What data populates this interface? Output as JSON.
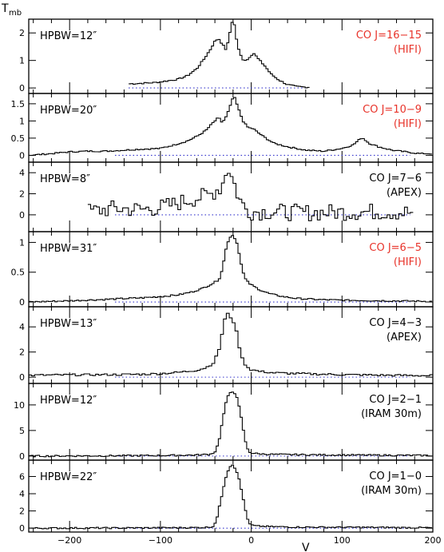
{
  "chart_data": {
    "type": "line",
    "title": "",
    "ylabel": "T_mb",
    "xlabel": "V",
    "xlim": [
      -245,
      200
    ],
    "x_ticks": [
      -200,
      -100,
      0,
      100,
      200
    ],
    "colors": {
      "hifi": "#e8332a",
      "other": "#000000",
      "baseline": "#3333cc"
    },
    "panels": [
      {
        "id": "co-16-15",
        "hpbw": "HPBW=12″",
        "line": "CO J=16−15",
        "instrument": "(HIFI)",
        "color": "#e8332a",
        "ylim": [
          -0.2,
          2.5
        ],
        "yticks": [
          0,
          1,
          2
        ],
        "xrange": [
          -135,
          62
        ],
        "points": [
          [
            -135,
            0.15
          ],
          [
            -120,
            0.17
          ],
          [
            -105,
            0.2
          ],
          [
            -90,
            0.27
          ],
          [
            -80,
            0.32
          ],
          [
            -70,
            0.45
          ],
          [
            -60,
            0.7
          ],
          [
            -52,
            1.05
          ],
          [
            -45,
            1.4
          ],
          [
            -40,
            1.7
          ],
          [
            -36,
            1.8
          ],
          [
            -32,
            1.6
          ],
          [
            -28,
            1.4
          ],
          [
            -25,
            1.7
          ],
          [
            -22,
            2.3
          ],
          [
            -20,
            2.5
          ],
          [
            -18,
            2.2
          ],
          [
            -15,
            1.5
          ],
          [
            -10,
            1.05
          ],
          [
            -5,
            1.0
          ],
          [
            0,
            1.2
          ],
          [
            3,
            1.25
          ],
          [
            8,
            1.05
          ],
          [
            15,
            0.8
          ],
          [
            22,
            0.5
          ],
          [
            30,
            0.3
          ],
          [
            40,
            0.12
          ],
          [
            50,
            0.05
          ],
          [
            62,
            0.03
          ]
        ]
      },
      {
        "id": "co-10-9",
        "hpbw": "HPBW=20″",
        "line": "CO J=10−9",
        "instrument": "(HIFI)",
        "color": "#e8332a",
        "ylim": [
          -0.2,
          1.8
        ],
        "yticks": [
          0,
          0.5,
          1,
          1.5
        ],
        "xrange": [
          -245,
          198
        ],
        "points": [
          [
            -245,
            0.0
          ],
          [
            -220,
            0.05
          ],
          [
            -200,
            0.1
          ],
          [
            -180,
            0.12
          ],
          [
            -160,
            0.12
          ],
          [
            -140,
            0.15
          ],
          [
            -120,
            0.18
          ],
          [
            -100,
            0.2
          ],
          [
            -85,
            0.3
          ],
          [
            -70,
            0.42
          ],
          [
            -60,
            0.55
          ],
          [
            -50,
            0.72
          ],
          [
            -42,
            0.95
          ],
          [
            -36,
            1.1
          ],
          [
            -32,
            0.95
          ],
          [
            -28,
            1.1
          ],
          [
            -24,
            1.35
          ],
          [
            -21,
            1.62
          ],
          [
            -19,
            1.72
          ],
          [
            -16,
            1.5
          ],
          [
            -12,
            1.2
          ],
          [
            -8,
            0.95
          ],
          [
            -3,
            0.8
          ],
          [
            2,
            0.78
          ],
          [
            8,
            0.65
          ],
          [
            15,
            0.52
          ],
          [
            25,
            0.35
          ],
          [
            40,
            0.25
          ],
          [
            60,
            0.15
          ],
          [
            80,
            0.12
          ],
          [
            100,
            0.2
          ],
          [
            112,
            0.3
          ],
          [
            122,
            0.52
          ],
          [
            130,
            0.35
          ],
          [
            140,
            0.25
          ],
          [
            155,
            0.15
          ],
          [
            170,
            0.1
          ],
          [
            185,
            0.05
          ],
          [
            198,
            0.05
          ]
        ]
      },
      {
        "id": "co-7-6",
        "hpbw": "HPBW=8″",
        "line": "CO J=7−6",
        "instrument": "(APEX)",
        "color": "#000000",
        "ylim": [
          -1.6,
          5.0
        ],
        "yticks": [
          0,
          2,
          4
        ],
        "xrange": [
          -180,
          178
        ],
        "noise": 0.8,
        "points": [
          [
            -180,
            0.3
          ],
          [
            -150,
            0.6
          ],
          [
            -120,
            0.5
          ],
          [
            -100,
            0.7
          ],
          [
            -85,
            1.0
          ],
          [
            -70,
            1.4
          ],
          [
            -55,
            1.7
          ],
          [
            -45,
            1.9
          ],
          [
            -38,
            2.4
          ],
          [
            -33,
            2.6
          ],
          [
            -29,
            3.6
          ],
          [
            -27,
            4.5
          ],
          [
            -24,
            4.3
          ],
          [
            -22,
            3.7
          ],
          [
            -20,
            3.2
          ],
          [
            -17,
            2.6
          ],
          [
            -14,
            1.7
          ],
          [
            -10,
            1.0
          ],
          [
            -5,
            0.5
          ],
          [
            0,
            0.3
          ],
          [
            20,
            0.3
          ],
          [
            60,
            0.2
          ],
          [
            100,
            0.25
          ],
          [
            140,
            0.3
          ],
          [
            178,
            0.2
          ]
        ]
      },
      {
        "id": "co-6-5",
        "hpbw": "HPBW=31″",
        "line": "CO J=6−5",
        "instrument": "(HIFI)",
        "color": "#e8332a",
        "ylim": [
          -0.08,
          1.18
        ],
        "yticks": [
          0,
          0.5,
          1
        ],
        "xrange": [
          -245,
          198
        ],
        "points": [
          [
            -245,
            0.0
          ],
          [
            -200,
            0.02
          ],
          [
            -150,
            0.05
          ],
          [
            -120,
            0.07
          ],
          [
            -100,
            0.09
          ],
          [
            -80,
            0.12
          ],
          [
            -65,
            0.17
          ],
          [
            -55,
            0.22
          ],
          [
            -45,
            0.29
          ],
          [
            -38,
            0.35
          ],
          [
            -34,
            0.42
          ],
          [
            -30,
            0.7
          ],
          [
            -27,
            0.95
          ],
          [
            -24,
            1.08
          ],
          [
            -21,
            1.12
          ],
          [
            -19,
            1.1
          ],
          [
            -16,
            1.0
          ],
          [
            -13,
            0.8
          ],
          [
            -10,
            0.55
          ],
          [
            -7,
            0.4
          ],
          [
            -3,
            0.32
          ],
          [
            2,
            0.27
          ],
          [
            10,
            0.2
          ],
          [
            20,
            0.14
          ],
          [
            35,
            0.09
          ],
          [
            50,
            0.06
          ],
          [
            75,
            0.04
          ],
          [
            100,
            0.03
          ],
          [
            150,
            0.02
          ],
          [
            198,
            0.01
          ]
        ]
      },
      {
        "id": "co-4-3",
        "hpbw": "HPBW=13″",
        "line": "CO J=4−3",
        "instrument": "(APEX)",
        "color": "#000000",
        "ylim": [
          -0.5,
          5.6
        ],
        "yticks": [
          0,
          2,
          4
        ],
        "xrange": [
          -245,
          198
        ],
        "noise": 0.08,
        "points": [
          [
            -245,
            0.15
          ],
          [
            -200,
            0.18
          ],
          [
            -150,
            0.2
          ],
          [
            -120,
            0.23
          ],
          [
            -100,
            0.28
          ],
          [
            -80,
            0.38
          ],
          [
            -60,
            0.55
          ],
          [
            -50,
            0.75
          ],
          [
            -42,
            1.1
          ],
          [
            -36,
            2.0
          ],
          [
            -32,
            3.5
          ],
          [
            -29,
            4.6
          ],
          [
            -27,
            5.1
          ],
          [
            -24,
            4.9
          ],
          [
            -21,
            4.6
          ],
          [
            -18,
            4.2
          ],
          [
            -15,
            3.2
          ],
          [
            -12,
            2.0
          ],
          [
            -9,
            1.3
          ],
          [
            -5,
            0.85
          ],
          [
            0,
            0.6
          ],
          [
            10,
            0.45
          ],
          [
            25,
            0.35
          ],
          [
            50,
            0.28
          ],
          [
            100,
            0.2
          ],
          [
            150,
            0.15
          ],
          [
            198,
            0.12
          ]
        ]
      },
      {
        "id": "co-2-1",
        "hpbw": "HPBW=12″",
        "line": "CO J=2−1",
        "instrument": "(IRAM 30m)",
        "color": "#000000",
        "ylim": [
          -0.8,
          14.2
        ],
        "yticks": [
          0,
          5,
          10
        ],
        "xrange": [
          -245,
          198
        ],
        "points": [
          [
            -245,
            0.0
          ],
          [
            -150,
            0.05
          ],
          [
            -100,
            0.1
          ],
          [
            -60,
            0.2
          ],
          [
            -45,
            0.35
          ],
          [
            -40,
            0.8
          ],
          [
            -36,
            2.5
          ],
          [
            -33,
            5.5
          ],
          [
            -30,
            8.5
          ],
          [
            -27,
            11.0
          ],
          [
            -24,
            12.3
          ],
          [
            -21,
            12.7
          ],
          [
            -18,
            12.3
          ],
          [
            -15,
            11.0
          ],
          [
            -12,
            8.5
          ],
          [
            -9,
            5.5
          ],
          [
            -6,
            2.5
          ],
          [
            -3,
            1.0
          ],
          [
            0,
            0.6
          ],
          [
            10,
            0.4
          ],
          [
            30,
            0.3
          ],
          [
            60,
            0.25
          ],
          [
            100,
            0.2
          ],
          [
            150,
            0.15
          ],
          [
            198,
            0.1
          ]
        ]
      },
      {
        "id": "co-1-0",
        "hpbw": "HPBW=22″",
        "line": "CO J=1−0",
        "instrument": "(IRAM 30m)",
        "color": "#000000",
        "ylim": [
          -0.45,
          7.9
        ],
        "yticks": [
          0,
          2,
          4,
          6
        ],
        "xrange": [
          -245,
          198
        ],
        "points": [
          [
            -245,
            0.0
          ],
          [
            -150,
            0.02
          ],
          [
            -80,
            0.05
          ],
          [
            -50,
            0.08
          ],
          [
            -42,
            0.2
          ],
          [
            -38,
            1.0
          ],
          [
            -35,
            2.5
          ],
          [
            -32,
            4.0
          ],
          [
            -29,
            5.5
          ],
          [
            -26,
            6.6
          ],
          [
            -23,
            7.2
          ],
          [
            -21,
            7.4
          ],
          [
            -19,
            7.2
          ],
          [
            -16,
            6.6
          ],
          [
            -13,
            5.5
          ],
          [
            -10,
            4.0
          ],
          [
            -7,
            2.5
          ],
          [
            -4,
            1.0
          ],
          [
            -1,
            0.4
          ],
          [
            5,
            0.25
          ],
          [
            20,
            0.18
          ],
          [
            50,
            0.12
          ],
          [
            100,
            0.1
          ],
          [
            150,
            0.08
          ],
          [
            198,
            0.05
          ]
        ]
      }
    ]
  }
}
